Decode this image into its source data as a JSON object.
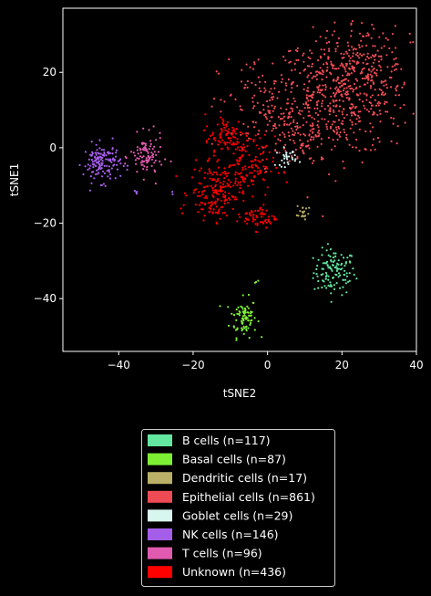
{
  "chart_data": {
    "type": "scatter",
    "xlabel": "tSNE2",
    "ylabel": "tSNE1",
    "xlim": [
      -55,
      40
    ],
    "ylim": [
      -54,
      37
    ],
    "xticks": [
      -40,
      -20,
      0,
      20,
      40
    ],
    "yticks": [
      -40,
      -20,
      0,
      20
    ],
    "xtick_labels": [
      "−40",
      "−20",
      "0",
      "20",
      "40"
    ],
    "ytick_labels": [
      "−40",
      "−20",
      "0",
      "20"
    ],
    "grid": false,
    "legend_position": "below",
    "background": "#000000",
    "series": [
      {
        "name": "B cells (n=117)",
        "count": 117,
        "color": "#63E6A0",
        "clusters": [
          {
            "cx": 18,
            "cy": -33,
            "sx": 2.8,
            "sy": 3.0,
            "n": 117
          }
        ]
      },
      {
        "name": "Basal cells (n=87)",
        "count": 87,
        "color": "#7EF034",
        "clusters": [
          {
            "cx": -6.5,
            "cy": -45,
            "sx": 1.8,
            "sy": 2.6,
            "n": 84
          },
          {
            "cx": -3,
            "cy": -35.5,
            "sx": 0.4,
            "sy": 0.6,
            "n": 3
          }
        ]
      },
      {
        "name": "Dendritic cells (n=17)",
        "count": 17,
        "color": "#B9AF67",
        "clusters": [
          {
            "cx": 9.5,
            "cy": -17,
            "sx": 0.8,
            "sy": 1.3,
            "n": 17
          }
        ]
      },
      {
        "name": "Epithelial cells (n=861)",
        "count": 861,
        "color": "#EE4B55",
        "clusters": [
          {
            "cx": 20,
            "cy": 14,
            "sx": 9,
            "sy": 8,
            "n": 500
          },
          {
            "cx": 3,
            "cy": 10,
            "sx": 8,
            "sy": 7,
            "n": 200
          },
          {
            "cx": 26,
            "cy": 22,
            "sx": 5,
            "sy": 5,
            "n": 120
          },
          {
            "cx": 10,
            "cy": 2,
            "sx": 4,
            "sy": 3,
            "n": 41
          }
        ]
      },
      {
        "name": "Goblet cells (n=29)",
        "count": 29,
        "color": "#D8F6EE",
        "clusters": [
          {
            "cx": 5,
            "cy": -2.5,
            "sx": 1.4,
            "sy": 1.2,
            "n": 29
          }
        ]
      },
      {
        "name": "NK cells (n=146)",
        "count": 146,
        "color": "#A55EEA",
        "clusters": [
          {
            "cx": -44.5,
            "cy": -4,
            "sx": 2.5,
            "sy": 2.5,
            "n": 140
          },
          {
            "cx": -35,
            "cy": -11.5,
            "sx": 0.6,
            "sy": 0.5,
            "n": 4
          },
          {
            "cx": -26,
            "cy": -12,
            "sx": 0.3,
            "sy": 0.3,
            "n": 2
          }
        ]
      },
      {
        "name": "T cells (n=96)",
        "count": 96,
        "color": "#E05BB0",
        "clusters": [
          {
            "cx": -32.5,
            "cy": -2.5,
            "sx": 2.2,
            "sy": 2.8,
            "n": 96
          }
        ]
      },
      {
        "name": "Unknown (n=436)",
        "count": 436,
        "color": "#FF0000",
        "clusters": [
          {
            "cx": -14,
            "cy": -12,
            "sx": 3.5,
            "sy": 3.5,
            "n": 160
          },
          {
            "cx": -6,
            "cy": -5,
            "sx": 4,
            "sy": 4,
            "n": 130
          },
          {
            "cx": -2,
            "cy": -18.5,
            "sx": 2.2,
            "sy": 1.6,
            "n": 60
          },
          {
            "cx": -11,
            "cy": 3,
            "sx": 3,
            "sy": 3,
            "n": 86
          }
        ]
      }
    ]
  }
}
